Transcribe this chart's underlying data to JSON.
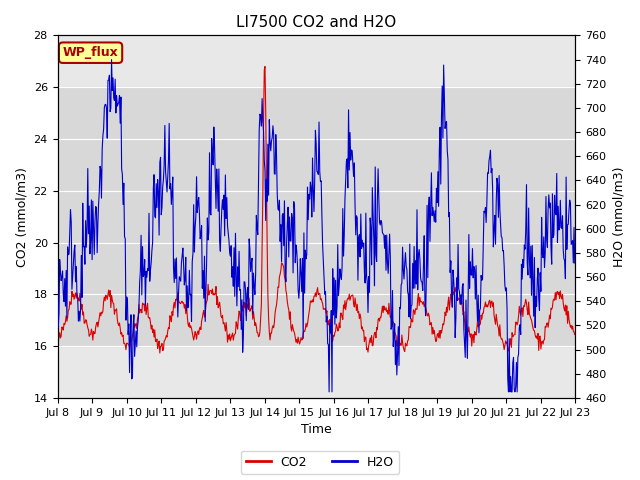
{
  "title": "LI7500 CO2 and H2O",
  "xlabel": "Time",
  "ylabel_left": "CO2 (mmol/m3)",
  "ylabel_right": "H2O (mmol/m3)",
  "ylim_left": [
    14,
    28
  ],
  "ylim_right": [
    460,
    760
  ],
  "co2_color": "#dd0000",
  "h2o_color": "#0000cc",
  "shaded_band_co2": [
    16,
    26
  ],
  "shaded_band_color": "#d8d8d8",
  "annotation_text": "WP_flux",
  "annotation_bg": "#ffff99",
  "annotation_edge": "#aa0000",
  "grid_color": "#ffffff",
  "plot_bg": "#e8e8e8",
  "fig_bg": "#ffffff",
  "legend_co2": "CO2",
  "legend_h2o": "H2O",
  "x_tick_labels": [
    "Jul 8",
    "Jul 9",
    "Jul 10",
    "Jul 11",
    "Jul 12",
    "Jul 13",
    "Jul 14",
    "Jul 15",
    "Jul 16",
    "Jul 17",
    "Jul 18",
    "Jul 19",
    "Jul 20",
    "Jul 21",
    "Jul 22",
    "Jul 23"
  ],
  "title_fontsize": 11,
  "tick_fontsize": 8,
  "label_fontsize": 9
}
